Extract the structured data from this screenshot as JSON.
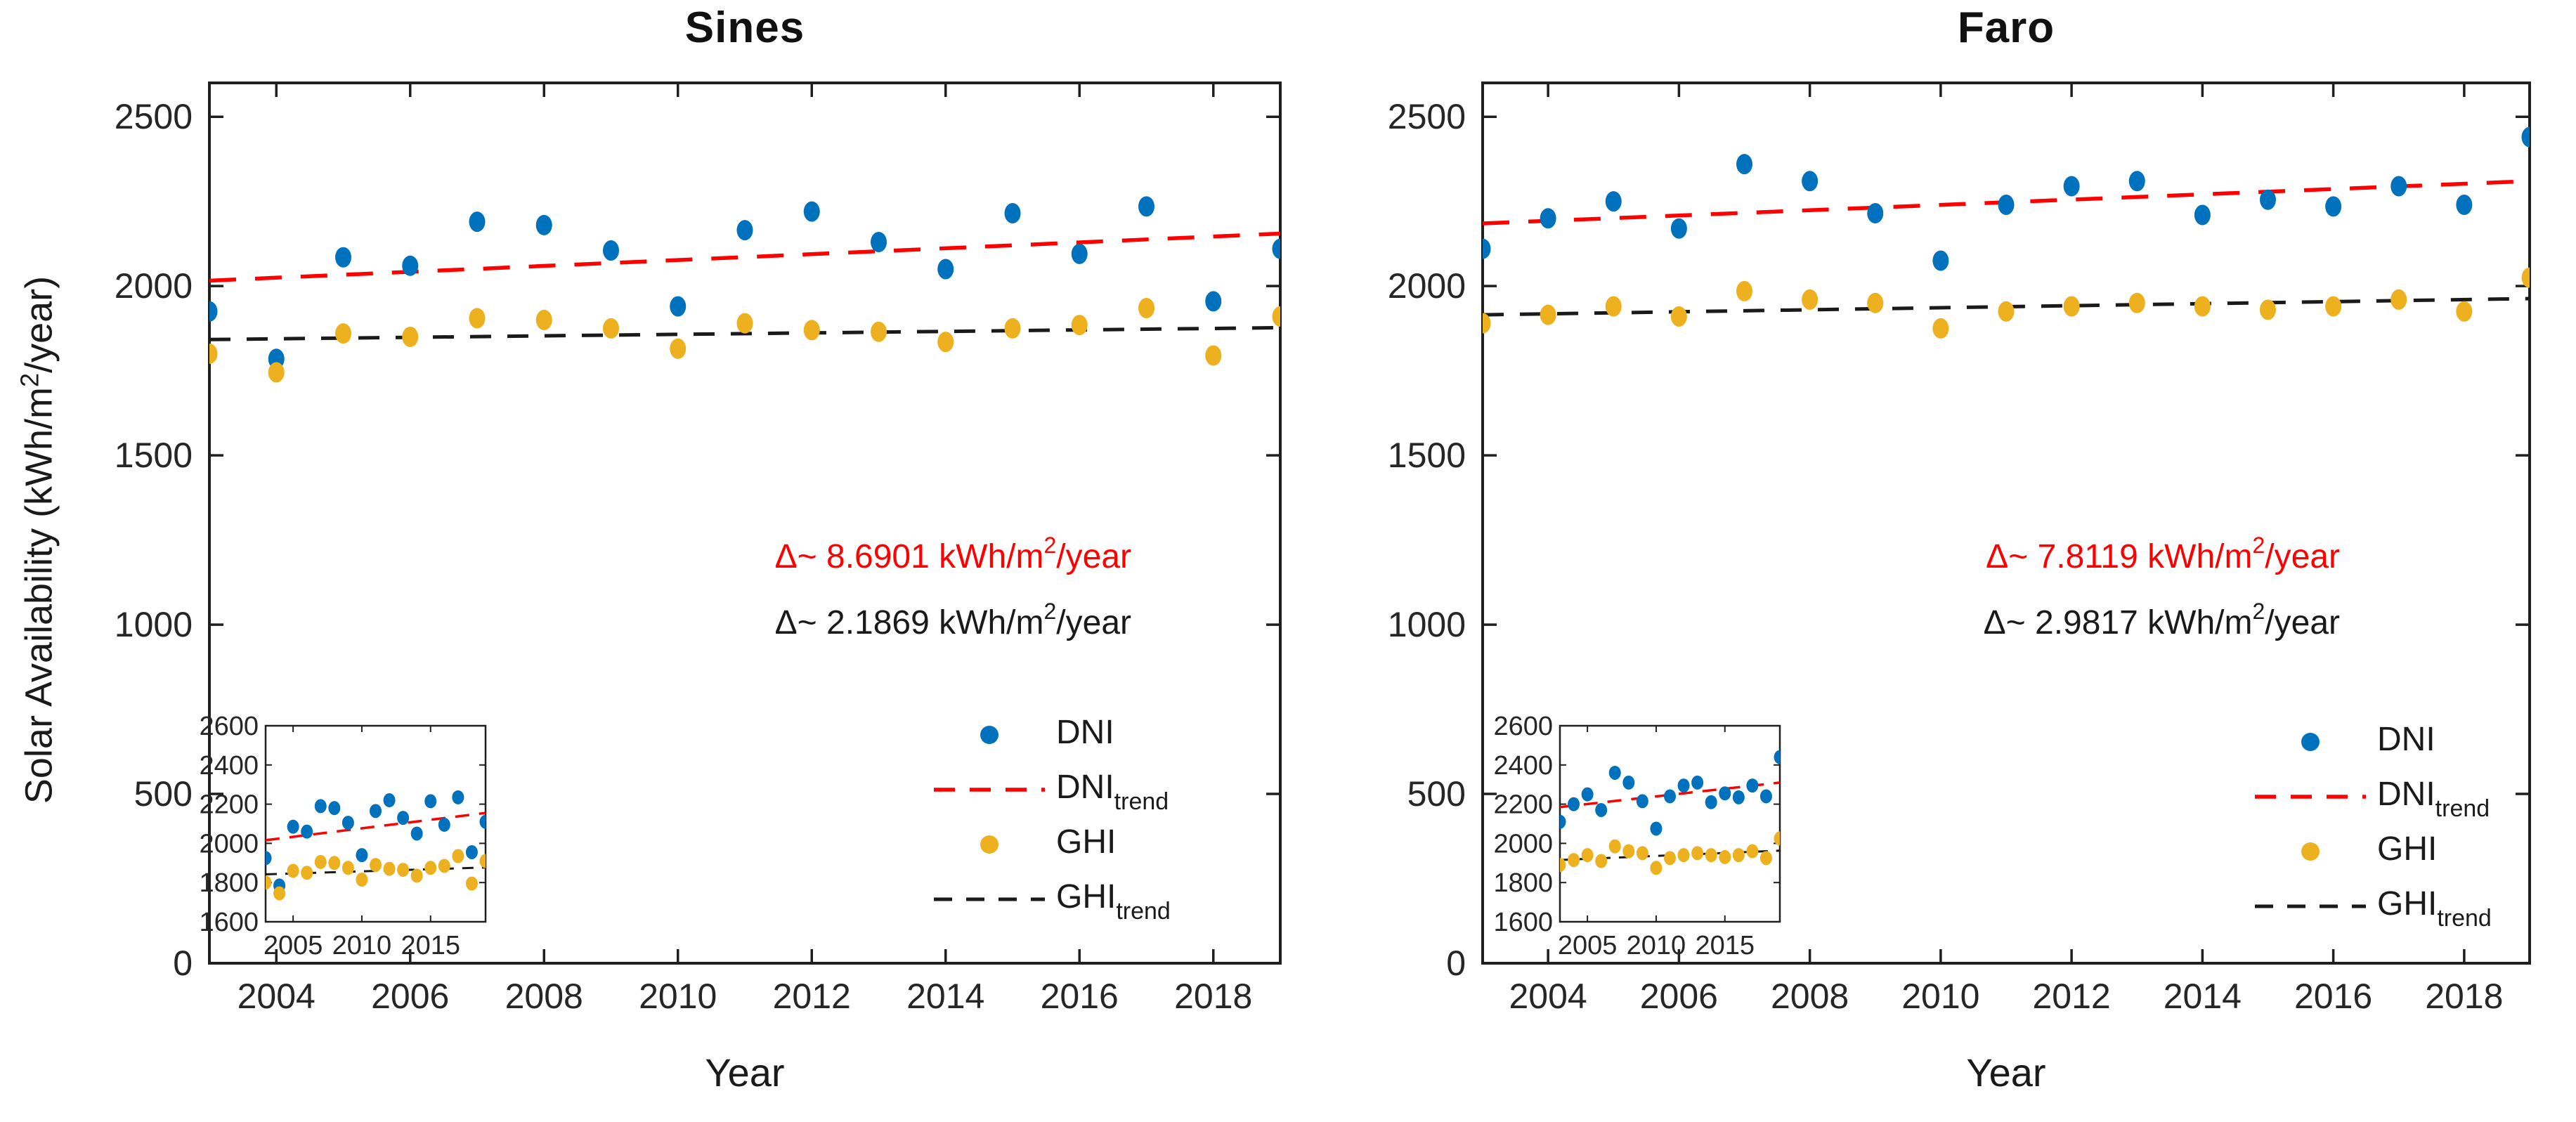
{
  "y_axis_label": {
    "pre": "Solar Availability (kWh/m",
    "sup": "2",
    "post": "/year)"
  },
  "colors": {
    "dni": "#0072BD",
    "ghi": "#EDB120",
    "dni_trend": "#FF0000",
    "ghi_trend": "#1A1A1A",
    "axis": "#1F1F1F",
    "tick_text": "#262626"
  },
  "panels": [
    {
      "id": "sines",
      "title": "Sines",
      "x_axis_label": "Year",
      "delta_dni": {
        "pre": "Δ~ 8.6901 kWh/m",
        "sup": "2",
        "post": "/year"
      },
      "delta_ghi": {
        "pre": "Δ~ 2.1869 kWh/m",
        "sup": "2",
        "post": "/year"
      },
      "legend": [
        {
          "label": "DNI",
          "sub": "",
          "marker": "dot",
          "color": "#0072BD"
        },
        {
          "label": "DNI",
          "sub": "trend",
          "marker": "dash",
          "color": "#FF0000"
        },
        {
          "label": "GHI",
          "sub": "",
          "marker": "dot",
          "color": "#EDB120"
        },
        {
          "label": "GHI",
          "sub": "trend",
          "marker": "dash",
          "color": "#1A1A1A"
        }
      ]
    },
    {
      "id": "faro",
      "title": "Faro",
      "x_axis_label": "Year",
      "delta_dni": {
        "pre": "Δ~ 7.8119 kWh/m",
        "sup": "2",
        "post": "/year"
      },
      "delta_ghi": {
        "pre": "Δ~ 2.9817 kWh/m",
        "sup": "2",
        "post": "/year"
      },
      "legend": [
        {
          "label": "DNI",
          "sub": "",
          "marker": "dot",
          "color": "#0072BD"
        },
        {
          "label": "DNI",
          "sub": "trend",
          "marker": "dash",
          "color": "#FF0000"
        },
        {
          "label": "GHI",
          "sub": "",
          "marker": "dot",
          "color": "#EDB120"
        },
        {
          "label": "GHI",
          "sub": "trend",
          "marker": "dash",
          "color": "#1A1A1A"
        }
      ]
    }
  ],
  "chart_data": [
    {
      "type": "scatter",
      "title": "Sines",
      "xlabel": "Year",
      "ylabel": "Solar Availability (kWh/m2/year)",
      "xlim": [
        2003,
        2019
      ],
      "ylim": [
        0,
        2600
      ],
      "x_ticks": [
        2004,
        2006,
        2008,
        2010,
        2012,
        2014,
        2016,
        2018
      ],
      "y_ticks": [
        0,
        500,
        1000,
        1500,
        2000,
        2500
      ],
      "grid": false,
      "legend_position": "lower right, no box",
      "x": [
        2003,
        2004,
        2005,
        2006,
        2007,
        2008,
        2009,
        2010,
        2011,
        2012,
        2013,
        2014,
        2015,
        2016,
        2017,
        2018,
        2019
      ],
      "series": [
        {
          "name": "DNI",
          "color": "#0072BD",
          "values": [
            1925,
            1785,
            2085,
            2060,
            2190,
            2180,
            2105,
            1940,
            2165,
            2220,
            2130,
            2050,
            2215,
            2095,
            2235,
            1955,
            2110
          ]
        },
        {
          "name": "GHI",
          "color": "#EDB120",
          "values": [
            1800,
            1745,
            1860,
            1850,
            1905,
            1900,
            1875,
            1815,
            1890,
            1870,
            1865,
            1835,
            1875,
            1885,
            1935,
            1795,
            1910
          ]
        }
      ],
      "trends": [
        {
          "name": "DNI_trend",
          "color": "#FF0000",
          "style": "dashed",
          "slope_kwh_m2_per_year": 8.6901,
          "endpoints": {
            "x": [
              2003,
              2019
            ],
            "y": [
              2016,
              2155
            ]
          }
        },
        {
          "name": "GHI_trend",
          "color": "#1A1A1A",
          "style": "dashed",
          "slope_kwh_m2_per_year": 2.1869,
          "endpoints": {
            "x": [
              2003,
              2019
            ],
            "y": [
              1842,
              1877
            ]
          }
        }
      ],
      "inset": {
        "xlim": [
          2003,
          2019
        ],
        "ylim": [
          1600,
          2600
        ],
        "x_ticks": [
          2005,
          2010,
          2015
        ],
        "y_ticks": [
          1600,
          1800,
          2000,
          2200,
          2400,
          2600
        ]
      }
    },
    {
      "type": "scatter",
      "title": "Faro",
      "xlabel": "Year",
      "ylabel": "Solar Availability (kWh/m2/year)",
      "xlim": [
        2003,
        2019
      ],
      "ylim": [
        0,
        2600
      ],
      "x_ticks": [
        2004,
        2006,
        2008,
        2010,
        2012,
        2014,
        2016,
        2018
      ],
      "y_ticks": [
        0,
        500,
        1000,
        1500,
        2000,
        2500
      ],
      "grid": false,
      "legend_position": "lower right, no box",
      "x": [
        2003,
        2004,
        2005,
        2006,
        2007,
        2008,
        2009,
        2010,
        2011,
        2012,
        2013,
        2014,
        2015,
        2016,
        2017,
        2018,
        2019
      ],
      "series": [
        {
          "name": "DNI",
          "color": "#0072BD",
          "values": [
            2110,
            2200,
            2250,
            2170,
            2360,
            2310,
            2215,
            2075,
            2240,
            2295,
            2310,
            2210,
            2255,
            2235,
            2295,
            2240,
            2440
          ]
        },
        {
          "name": "GHI",
          "color": "#EDB120",
          "values": [
            1890,
            1915,
            1940,
            1910,
            1985,
            1960,
            1950,
            1875,
            1925,
            1940,
            1950,
            1940,
            1930,
            1940,
            1960,
            1925,
            2025
          ]
        }
      ],
      "trends": [
        {
          "name": "DNI_trend",
          "color": "#FF0000",
          "style": "dashed",
          "slope_kwh_m2_per_year": 7.8119,
          "endpoints": {
            "x": [
              2003,
              2019
            ],
            "y": [
              2185,
              2310
            ]
          }
        },
        {
          "name": "GHI_trend",
          "color": "#1A1A1A",
          "style": "dashed",
          "slope_kwh_m2_per_year": 2.9817,
          "endpoints": {
            "x": [
              2003,
              2019
            ],
            "y": [
              1915,
              1963
            ]
          }
        }
      ],
      "inset": {
        "xlim": [
          2003,
          2019
        ],
        "ylim": [
          1600,
          2600
        ],
        "x_ticks": [
          2005,
          2010,
          2015
        ],
        "y_ticks": [
          1600,
          1800,
          2000,
          2200,
          2400,
          2600
        ]
      }
    }
  ]
}
